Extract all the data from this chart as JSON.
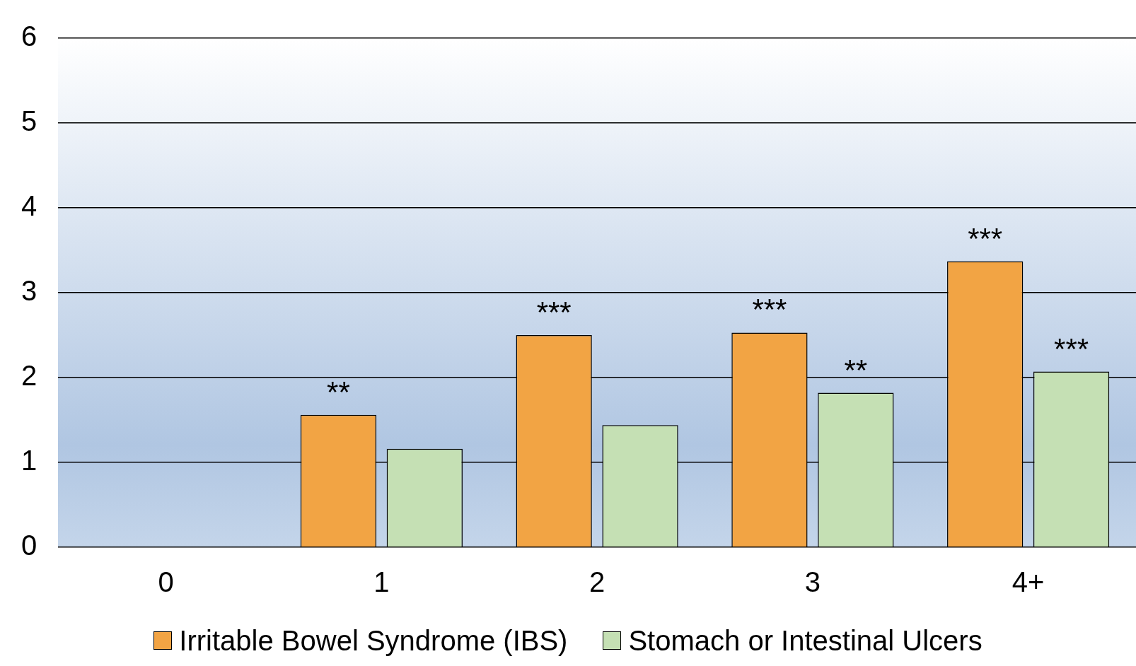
{
  "chart_data": {
    "type": "bar",
    "categories": [
      "0",
      "1",
      "2",
      "3",
      "4+"
    ],
    "series": [
      {
        "name": "Irritable Bowel Syndrome (IBS)",
        "color": "#f2a444",
        "values": [
          null,
          1.56,
          2.5,
          2.53,
          3.37
        ],
        "value_labels": [
          null,
          "**",
          "***",
          "***",
          "***"
        ]
      },
      {
        "name": "Stomach or Intestinal Ulcers",
        "color": "#c5e0b4",
        "values": [
          null,
          1.16,
          1.44,
          1.82,
          2.07
        ],
        "value_labels": [
          null,
          null,
          null,
          "**",
          "***"
        ]
      }
    ],
    "ylim": [
      0,
      6
    ],
    "yticks": [
      0,
      1,
      2,
      3,
      4,
      5,
      6
    ],
    "grid": "y",
    "legend": "bottom"
  }
}
